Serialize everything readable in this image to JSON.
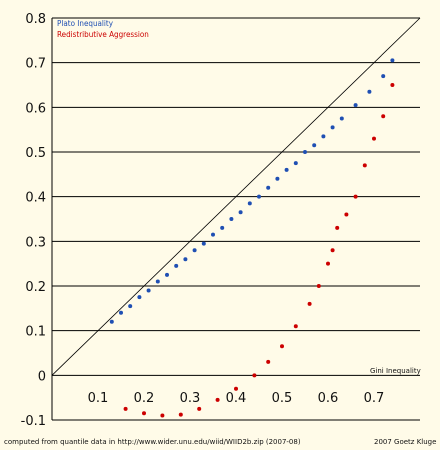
{
  "chart_data": {
    "type": "scatter",
    "title": "",
    "xlabel": "",
    "ylabel": "",
    "xlim": [
      0,
      0.8
    ],
    "ylim": [
      -0.1,
      0.8
    ],
    "x_ticks": [
      "0.1",
      "0.2",
      "0.3",
      "0.4",
      "0.5",
      "0.6",
      "0.7"
    ],
    "y_ticks": [
      "0.8",
      "0.7",
      "0.6",
      "0.5",
      "0.4",
      "0.3",
      "0.2",
      "0.1",
      "0",
      "-0.1"
    ],
    "grid": "horizontal",
    "reference_line": {
      "from": [
        0,
        0
      ],
      "to": [
        0.8,
        0.8
      ]
    },
    "axis_annotation": "Gini Inequality",
    "legend_position": "top-left",
    "series": [
      {
        "name": "Plato Inequality",
        "color": "#1f4fb3",
        "points": [
          [
            0.13,
            0.12
          ],
          [
            0.15,
            0.14
          ],
          [
            0.17,
            0.155
          ],
          [
            0.19,
            0.175
          ],
          [
            0.21,
            0.19
          ],
          [
            0.23,
            0.21
          ],
          [
            0.25,
            0.225
          ],
          [
            0.27,
            0.245
          ],
          [
            0.29,
            0.26
          ],
          [
            0.31,
            0.28
          ],
          [
            0.33,
            0.295
          ],
          [
            0.35,
            0.315
          ],
          [
            0.37,
            0.33
          ],
          [
            0.39,
            0.35
          ],
          [
            0.41,
            0.365
          ],
          [
            0.43,
            0.385
          ],
          [
            0.45,
            0.4
          ],
          [
            0.47,
            0.42
          ],
          [
            0.49,
            0.44
          ],
          [
            0.51,
            0.46
          ],
          [
            0.53,
            0.475
          ],
          [
            0.55,
            0.5
          ],
          [
            0.57,
            0.515
          ],
          [
            0.59,
            0.535
          ],
          [
            0.61,
            0.555
          ],
          [
            0.63,
            0.575
          ],
          [
            0.66,
            0.605
          ],
          [
            0.69,
            0.635
          ],
          [
            0.72,
            0.67
          ],
          [
            0.74,
            0.705
          ]
        ]
      },
      {
        "name": "Redistributive Aggression",
        "color": "#cc0000",
        "points": [
          [
            0.16,
            -0.075
          ],
          [
            0.2,
            -0.085
          ],
          [
            0.24,
            -0.09
          ],
          [
            0.28,
            -0.088
          ],
          [
            0.32,
            -0.075
          ],
          [
            0.36,
            -0.055
          ],
          [
            0.4,
            -0.03
          ],
          [
            0.44,
            0.0
          ],
          [
            0.47,
            0.03
          ],
          [
            0.5,
            0.065
          ],
          [
            0.53,
            0.11
          ],
          [
            0.56,
            0.16
          ],
          [
            0.58,
            0.2
          ],
          [
            0.6,
            0.25
          ],
          [
            0.61,
            0.28
          ],
          [
            0.62,
            0.33
          ],
          [
            0.64,
            0.36
          ],
          [
            0.66,
            0.4
          ],
          [
            0.68,
            0.47
          ],
          [
            0.7,
            0.53
          ],
          [
            0.72,
            0.58
          ],
          [
            0.74,
            0.65
          ]
        ]
      }
    ]
  },
  "footer": {
    "source": "computed from quantile data in http://www.wider.unu.edu/wiid/WIID2b.zip (2007-08)",
    "credit": "2007 Goetz Kluge"
  }
}
